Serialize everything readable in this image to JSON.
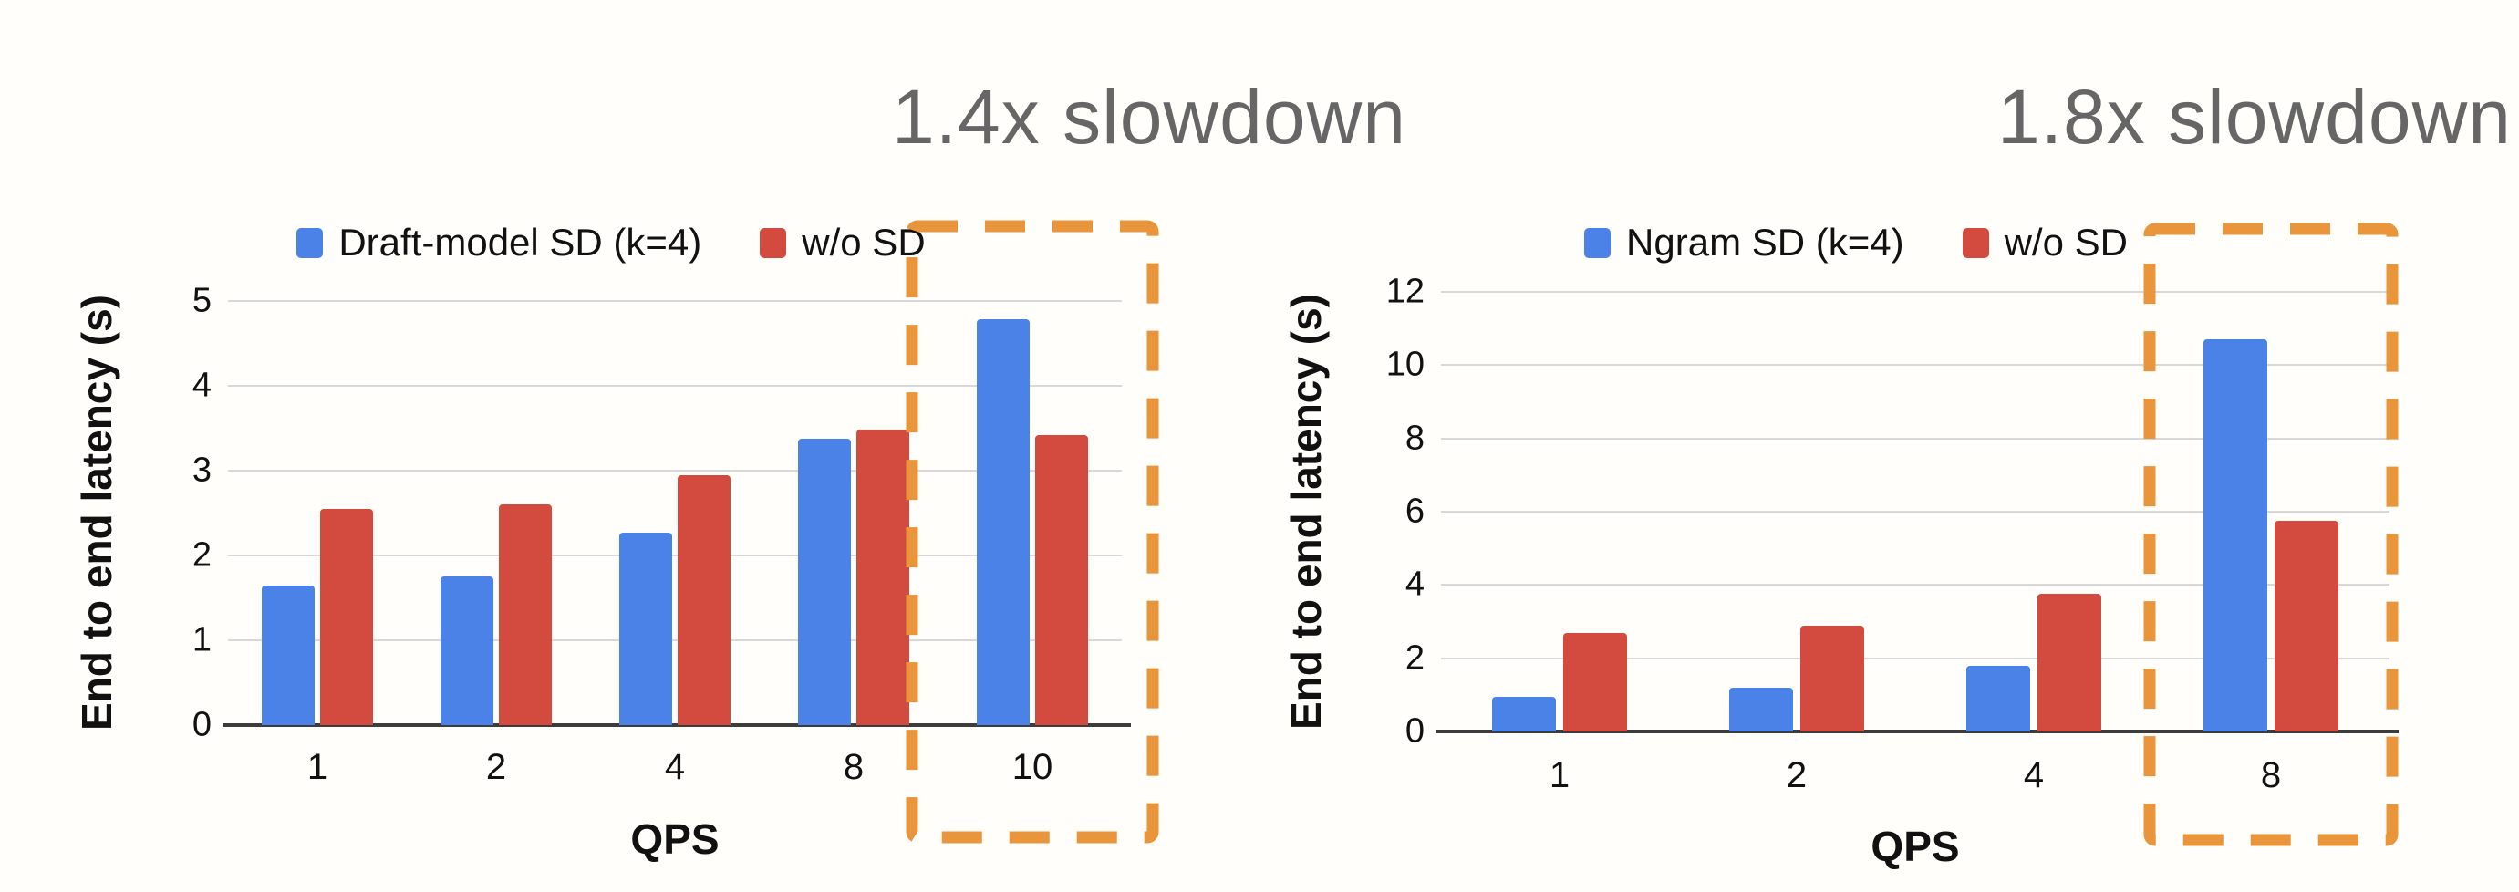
{
  "page": {
    "background_color": "#fffefa",
    "description_colors": {
      "series_blue": "#4a82e8",
      "series_red": "#d24b3e",
      "highlight_orange": "#e8953b",
      "annotation_gray": "#666666",
      "gridline_gray": "#d8d8d8",
      "axis_dark": "#3c3c3c"
    }
  },
  "chart_data": [
    {
      "type": "bar",
      "annotation": "1.4x slowdown",
      "ylabel": "End to end latency (s)",
      "xlabel": "QPS",
      "categories": [
        "1",
        "2",
        "4",
        "8",
        "10"
      ],
      "yticks": [
        0,
        1,
        2,
        3,
        4,
        5
      ],
      "ylim": [
        0,
        5
      ],
      "grid": true,
      "legend_position": "top",
      "series": [
        {
          "name": "Draft-model SD (k=4)",
          "color": "#4a82e8",
          "values": [
            1.65,
            1.75,
            2.27,
            3.38,
            4.78
          ]
        },
        {
          "name": "w/o SD",
          "color": "#d24b3e",
          "values": [
            2.55,
            2.6,
            2.95,
            3.48,
            3.42
          ]
        }
      ],
      "highlight": {
        "category": "10",
        "note": "1.4x slowdown",
        "box_color": "#e8953b"
      }
    },
    {
      "type": "bar",
      "annotation": "1.8x slowdown",
      "ylabel": "End to end latency (s)",
      "xlabel": "QPS",
      "categories": [
        "1",
        "2",
        "4",
        "8"
      ],
      "yticks": [
        0,
        2,
        4,
        6,
        8,
        10,
        12
      ],
      "ylim": [
        0,
        12
      ],
      "grid": true,
      "legend_position": "top",
      "series": [
        {
          "name": "Ngram SD (k=4)",
          "color": "#4a82e8",
          "values": [
            0.95,
            1.2,
            1.8,
            10.7
          ]
        },
        {
          "name": "w/o SD",
          "color": "#d24b3e",
          "values": [
            2.7,
            2.9,
            3.75,
            5.75
          ]
        }
      ],
      "highlight": {
        "category": "8",
        "note": "1.8x slowdown",
        "box_color": "#e8953b"
      }
    }
  ]
}
